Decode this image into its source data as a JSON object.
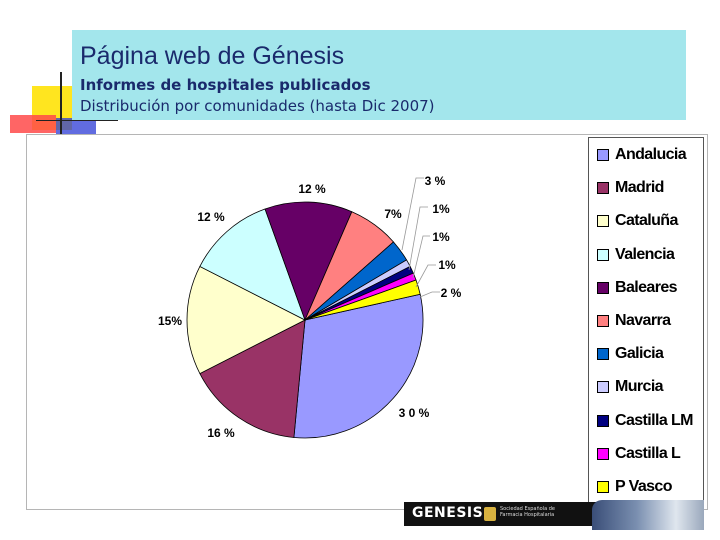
{
  "header": {
    "title": "Página web de Génesis",
    "subtitle": "Informes de hospitales publicados",
    "subtitle2": "Distribución por comunidades (hasta Dic 2007)"
  },
  "footer": {
    "logo_text": "GENESIS",
    "seal_text": "Sociedad Española de Farmacia Hospitalaria"
  },
  "chart_data": {
    "type": "pie",
    "unit": "%",
    "legend_position": "right",
    "categories": [
      "Andalucia",
      "Madrid",
      "Cataluña",
      "Valencia",
      "Baleares",
      "Navarra",
      "Galicia",
      "Murcia",
      "Castilla LM",
      "Castilla L",
      "P Vasco"
    ],
    "values": [
      30,
      16,
      15,
      12,
      12,
      7,
      3,
      1,
      1,
      1,
      2
    ],
    "labels": [
      "3 0 %",
      "16 %",
      "15%",
      "12 %",
      "12 %",
      "7%",
      "3 %",
      "1%",
      "1%",
      "1%",
      "2 %"
    ],
    "colors": [
      "#9999ff",
      "#993366",
      "#ffffcc",
      "#ccffff",
      "#660066",
      "#ff8080",
      "#0066cc",
      "#ccccff",
      "#000080",
      "#ff00ff",
      "#ffff00"
    ]
  }
}
